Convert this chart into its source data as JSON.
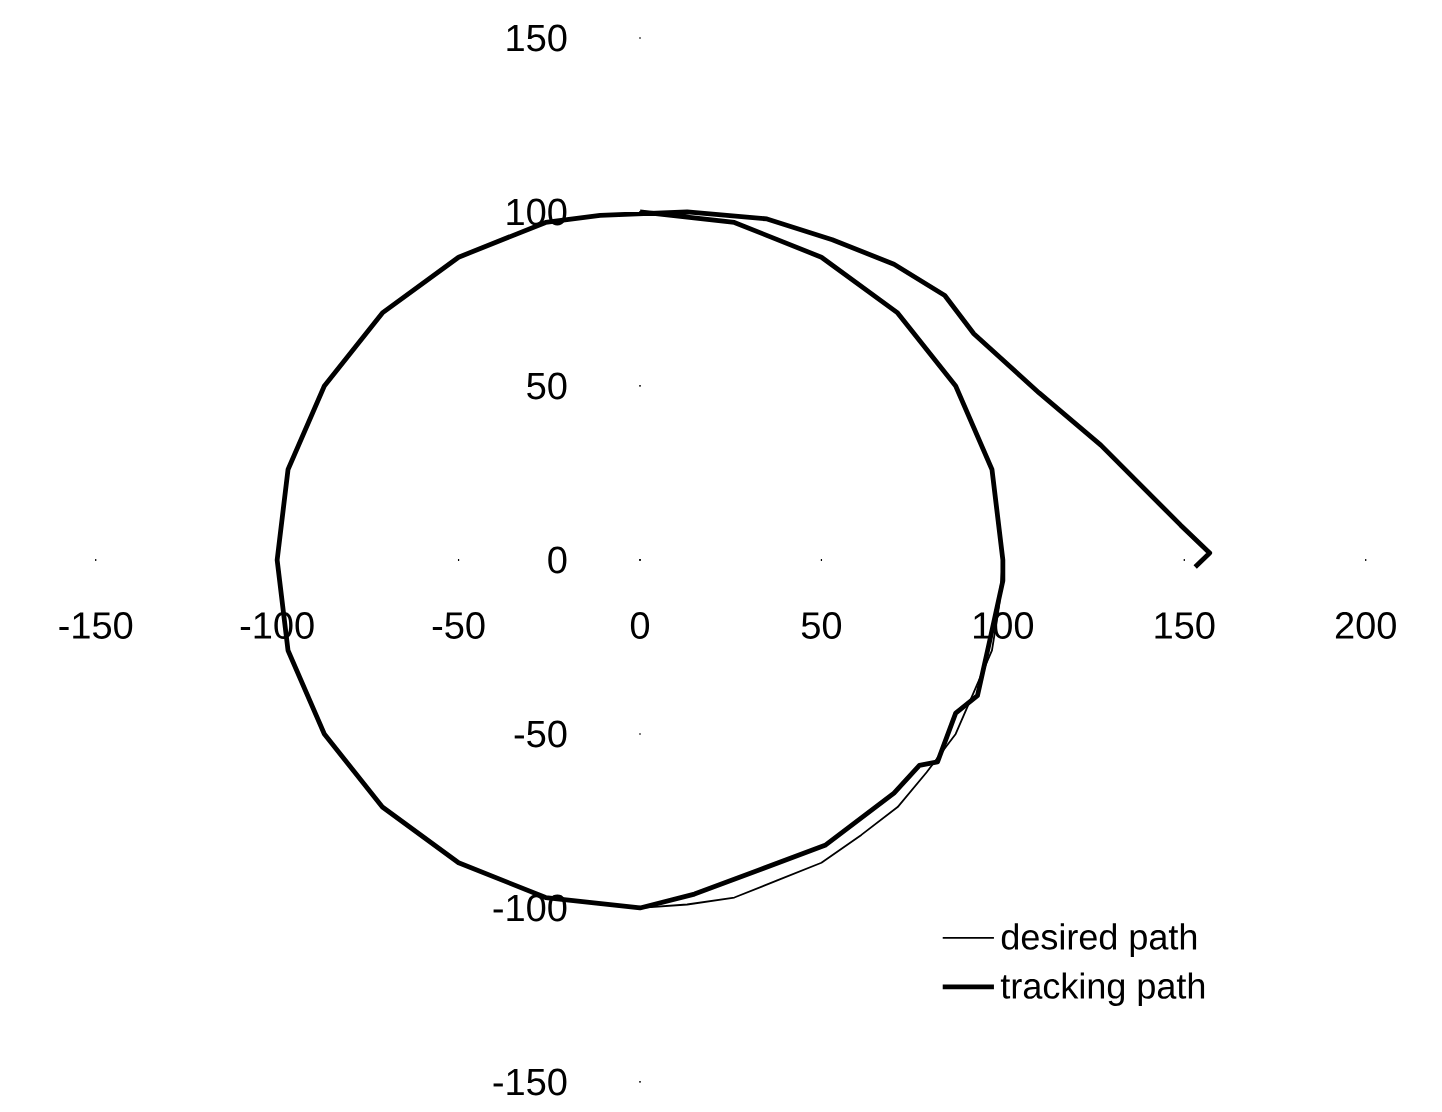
{
  "chart_data": {
    "type": "line",
    "xlim": [
      -150,
      200
    ],
    "ylim": [
      -150,
      150
    ],
    "xticks": [
      -150,
      -100,
      -50,
      0,
      50,
      100,
      150,
      200
    ],
    "yticks": [
      -150,
      -100,
      -50,
      0,
      50,
      100,
      150
    ],
    "legend": "bottom right",
    "series": [
      {
        "name": "desired path",
        "color": "#000000",
        "x": [
          0,
          13,
          26,
          38,
          50,
          61,
          71,
          79,
          87,
          92,
          97,
          99,
          100
        ],
        "values": [
          -100,
          -99,
          -97,
          -92,
          -87,
          -79,
          -71,
          -61,
          -50,
          -38,
          -26,
          -13,
          0
        ]
      },
      {
        "name": "tracking path",
        "color": "#000000",
        "x": [
          153,
          157,
          149,
          127,
          110,
          92,
          84,
          70,
          53,
          35,
          13,
          -11,
          -26,
          -50,
          -71,
          -87,
          -97,
          -100,
          -97,
          -87,
          -71,
          -50,
          -26,
          0,
          15,
          33,
          51,
          70,
          77,
          82,
          87,
          93,
          96,
          100,
          100,
          97,
          87,
          71,
          50,
          26,
          0
        ],
        "values": [
          -2,
          2,
          10,
          33,
          48,
          65,
          76,
          85,
          92,
          98,
          100,
          99,
          97,
          87,
          71,
          50,
          26,
          0,
          -26,
          -50,
          -71,
          -87,
          -97,
          -100,
          -96,
          -89,
          -82,
          -67,
          -59,
          -58,
          -44,
          -39,
          -25,
          -6,
          0,
          26,
          50,
          71,
          87,
          97,
          100
        ]
      }
    ]
  }
}
